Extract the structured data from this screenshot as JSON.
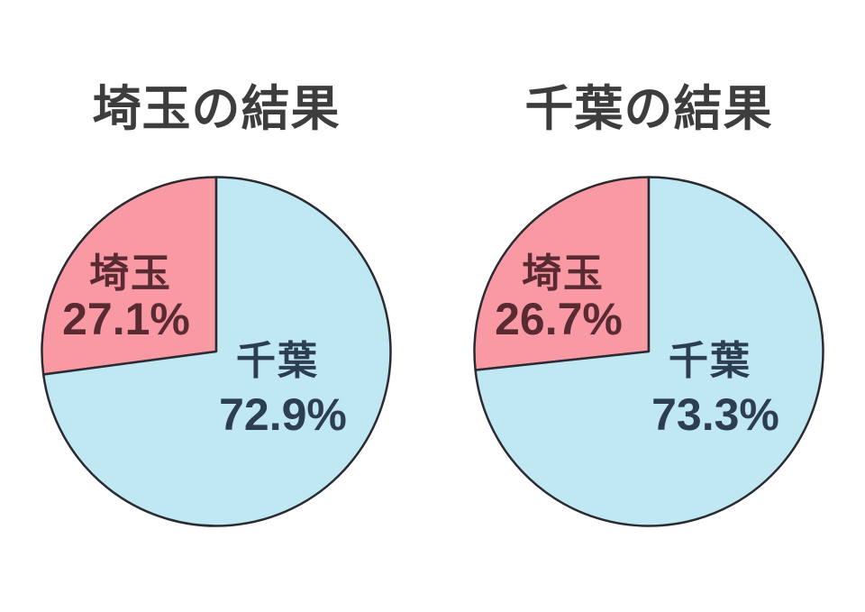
{
  "palette": {
    "background": "#ffffff",
    "title_text": "#3d3d3d",
    "pie_outline": "#2b2b33",
    "saitama_slice": "#f999a4",
    "chiba_slice": "#bfe8f2",
    "saitama_text": "#5a2a33",
    "chiba_text": "#2c3e50"
  },
  "chart_data": [
    {
      "type": "pie",
      "title": "埼玉の結果",
      "start_angle": "top",
      "direction": "counterclockwise",
      "legend": "none",
      "outline_color": "#2b2b33",
      "slices": [
        {
          "label": "埼玉",
          "value": 27.1,
          "pct_label": "27.1%",
          "color": "#f999a4",
          "label_color": "#5a2a33"
        },
        {
          "label": "千葉",
          "value": 72.9,
          "pct_label": "72.9%",
          "color": "#bfe8f2",
          "label_color": "#2c3e50"
        }
      ]
    },
    {
      "type": "pie",
      "title": "千葉の結果",
      "start_angle": "top",
      "direction": "counterclockwise",
      "legend": "none",
      "outline_color": "#2b2b33",
      "slices": [
        {
          "label": "埼玉",
          "value": 26.7,
          "pct_label": "26.7%",
          "color": "#f999a4",
          "label_color": "#5a2a33"
        },
        {
          "label": "千葉",
          "value": 73.3,
          "pct_label": "73.3%",
          "color": "#bfe8f2",
          "label_color": "#2c3e50"
        }
      ]
    }
  ]
}
